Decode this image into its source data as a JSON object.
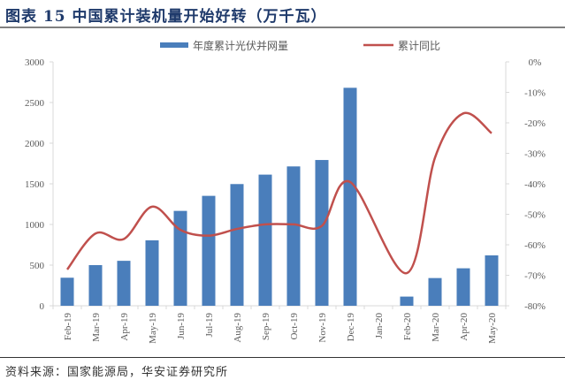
{
  "title": "图表 15 中国累计装机量开始好转（万千瓦）",
  "source": "资料来源：国家能源局，华安证券研究所",
  "chart_data": {
    "type": "bar+line",
    "categories": [
      "Feb-19",
      "Mar-19",
      "Apr-19",
      "May-19",
      "Jun-19",
      "Jul-19",
      "Aug-19",
      "Sep-19",
      "Oct-19",
      "Nov-19",
      "Dec-19",
      "Jan-20",
      "Feb-20",
      "Mar-20",
      "Apr-20",
      "May-20"
    ],
    "series": [
      {
        "name": "年度累计光伏并网量",
        "type": "bar",
        "axis": "left",
        "color": "#4a7ebb",
        "values": [
          345,
          500,
          553,
          805,
          1167,
          1352,
          1497,
          1613,
          1714,
          1793,
          2681,
          null,
          113,
          341,
          461,
          620
        ]
      },
      {
        "name": "累计同比",
        "type": "line",
        "smooth": true,
        "axis": "right",
        "color": "#c0504d",
        "values": [
          -68.1,
          -56.3,
          -58.1,
          -47.5,
          -55.1,
          -57.0,
          -54.8,
          -53.3,
          -53.3,
          -53.8,
          -39.4,
          null,
          -69.3,
          -31.4,
          -16.9,
          -23.4
        ]
      }
    ],
    "y_left": {
      "range": [
        0,
        3000
      ],
      "ticks": [
        "0",
        "500",
        "1000",
        "1500",
        "2000",
        "2500",
        "3000"
      ]
    },
    "y_right": {
      "range": [
        -80,
        0
      ],
      "ticks": [
        "-80%",
        "-70%",
        "-60%",
        "-50%",
        "-40%",
        "-30%",
        "-20%",
        "-10%",
        "0%"
      ]
    },
    "grid": false,
    "legend": "top"
  }
}
